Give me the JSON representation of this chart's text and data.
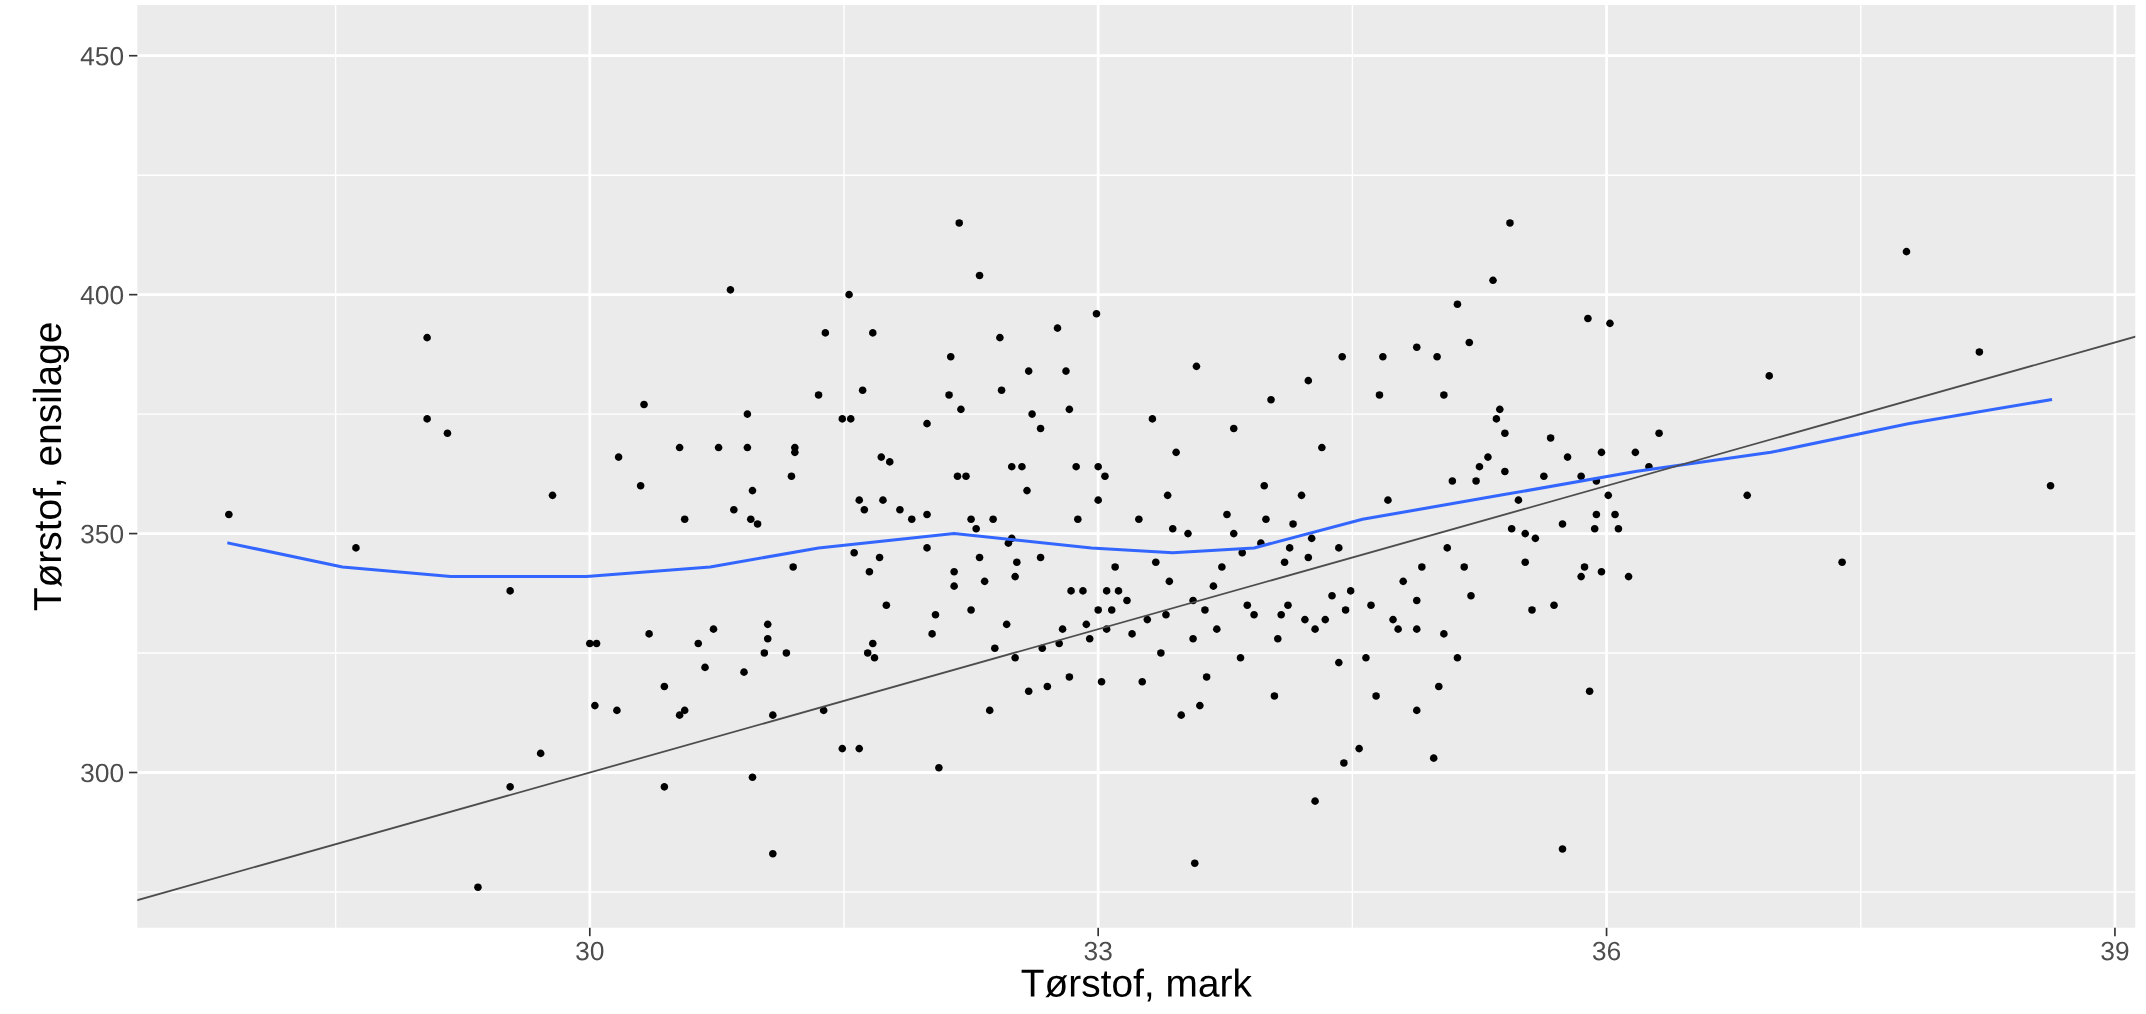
{
  "chart_data": {
    "type": "scatter",
    "xlabel": "Tørstof, mark",
    "ylabel": "Tørstof, ensilage",
    "xlim": [
      27.33,
      39.12
    ],
    "ylim": [
      267.5,
      460.6
    ],
    "xticks": [
      30,
      33,
      36,
      39
    ],
    "yticks": [
      300,
      350,
      400,
      450
    ],
    "grid": true,
    "legend": false,
    "series": [
      {
        "marker": "circle",
        "color": "#000000",
        "x": [
          27.87,
          28.62,
          29.04,
          29.04,
          29.16,
          29.53,
          29.53,
          29.34,
          29.71,
          29.78,
          30.0,
          30.04,
          30.03,
          30.16,
          30.17,
          30.3,
          30.32,
          30.35,
          30.44,
          30.44,
          30.53,
          30.56,
          30.56,
          30.64,
          30.68,
          30.73,
          30.76,
          30.83,
          30.85,
          30.91,
          30.93,
          30.93,
          30.95,
          30.96,
          30.96,
          30.99,
          31.03,
          31.05,
          31.05,
          31.08,
          31.08,
          31.16,
          31.19,
          31.21,
          31.21,
          31.35,
          31.38,
          31.49,
          31.49,
          31.53,
          31.54,
          31.59,
          31.56,
          31.59,
          31.61,
          31.62,
          31.65,
          31.64,
          31.67,
          31.68,
          31.71,
          31.72,
          31.73,
          31.75,
          31.77,
          31.83,
          31.9,
          31.99,
          31.99,
          31.99,
          32.02,
          32.04,
          32.06,
          32.12,
          32.13,
          32.15,
          32.15,
          32.17,
          32.19,
          32.18,
          32.22,
          32.25,
          32.25,
          32.28,
          32.3,
          32.33,
          32.3,
          32.36,
          32.38,
          32.39,
          32.43,
          32.46,
          32.47,
          32.49,
          32.49,
          32.51,
          32.51,
          32.52,
          32.55,
          32.58,
          32.59,
          32.61,
          32.66,
          32.66,
          32.67,
          32.7,
          32.76,
          32.77,
          32.79,
          32.83,
          32.84,
          32.87,
          32.88,
          32.91,
          32.93,
          32.95,
          32.99,
          33.0,
          33.0,
          33.0,
          33.02,
          33.04,
          33.05,
          33.05,
          33.08,
          33.1,
          33.12,
          33.17,
          33.2,
          33.24,
          33.26,
          33.29,
          33.34,
          33.37,
          33.4,
          33.41,
          33.42,
          33.44,
          33.49,
          33.53,
          33.56,
          33.56,
          33.57,
          33.6,
          33.64,
          33.63,
          33.68,
          33.7,
          33.73,
          33.76,
          33.8,
          33.84,
          33.85,
          33.88,
          33.92,
          33.96,
          33.98,
          33.99,
          34.04,
          34.06,
          34.08,
          34.1,
          34.12,
          34.13,
          34.15,
          34.2,
          34.22,
          34.24,
          34.26,
          34.28,
          34.28,
          34.32,
          34.34,
          34.38,
          34.42,
          34.42,
          34.45,
          34.46,
          34.49,
          34.54,
          34.58,
          34.61,
          34.64,
          34.71,
          34.74,
          34.77,
          34.8,
          34.88,
          34.88,
          34.88,
          34.91,
          34.98,
          35.01,
          35.04,
          35.04,
          35.06,
          35.09,
          35.12,
          35.16,
          35.2,
          35.23,
          35.25,
          35.3,
          35.35,
          35.4,
          35.4,
          35.43,
          35.44,
          35.48,
          35.52,
          35.52,
          35.56,
          35.58,
          35.63,
          35.69,
          35.74,
          35.77,
          35.85,
          35.87,
          35.9,
          35.93,
          35.94,
          35.97,
          36.01,
          36.05,
          36.07,
          36.13,
          36.17,
          36.25,
          36.31,
          35.74,
          35.89,
          36.02,
          35.33,
          35.12,
          35.0,
          34.88,
          34.66,
          34.44,
          34.68,
          35.19,
          35.37,
          36.83,
          36.96,
          37.39,
          37.77,
          38.2,
          38.62,
          35.67,
          35.85,
          35.97,
          35.94,
          30.53,
          31.39,
          31.67,
          32.42,
          31.2,
          32.59,
          32.81,
          32.83,
          34.02,
          34.24,
          33.8,
          33.46,
          33.58,
          33.32
        ],
        "values": [
          354,
          347,
          391,
          374,
          371,
          338,
          297,
          276,
          304,
          358,
          327,
          327,
          314,
          313,
          366,
          360,
          377,
          329,
          297,
          318,
          312,
          313,
          353,
          327,
          322,
          330,
          368,
          401,
          355,
          321,
          375,
          368,
          353,
          299,
          359,
          352,
          325,
          328,
          331,
          283,
          312,
          325,
          362,
          367,
          368,
          379,
          313,
          374,
          305,
          400,
          374,
          305,
          346,
          357,
          380,
          355,
          342,
          325,
          327,
          324,
          345,
          366,
          357,
          335,
          365,
          355,
          353,
          373,
          354,
          347,
          329,
          333,
          301,
          379,
          387,
          342,
          339,
          362,
          376,
          415,
          362,
          334,
          353,
          351,
          345,
          340,
          404,
          313,
          353,
          326,
          380,
          331,
          348,
          349,
          364,
          341,
          324,
          344,
          364,
          359,
          317,
          375,
          345,
          372,
          326,
          318,
          393,
          327,
          330,
          320,
          338,
          364,
          353,
          338,
          331,
          328,
          396,
          357,
          334,
          364,
          319,
          362,
          330,
          338,
          334,
          343,
          338,
          336,
          329,
          353,
          319,
          332,
          344,
          325,
          333,
          358,
          340,
          351,
          312,
          350,
          336,
          328,
          281,
          314,
          320,
          334,
          339,
          330,
          343,
          354,
          350,
          324,
          346,
          335,
          333,
          348,
          360,
          353,
          316,
          328,
          333,
          344,
          335,
          347,
          352,
          358,
          332,
          345,
          349,
          294,
          330,
          368,
          332,
          337,
          347,
          323,
          302,
          334,
          338,
          305,
          324,
          335,
          316,
          357,
          332,
          330,
          340,
          313,
          330,
          336,
          343,
          303,
          318,
          379,
          329,
          347,
          361,
          324,
          343,
          337,
          361,
          364,
          366,
          374,
          371,
          363,
          415,
          351,
          357,
          344,
          350,
          334,
          349,
          362,
          335,
          352,
          366,
          341,
          343,
          317,
          351,
          354,
          342,
          358,
          354,
          351,
          341,
          367,
          364,
          371,
          284,
          395,
          394,
          403,
          398,
          387,
          389,
          379,
          387,
          387,
          390,
          376,
          358,
          383,
          344,
          409,
          388,
          360,
          370,
          362,
          367,
          361,
          368,
          392,
          392,
          391,
          343,
          384,
          384,
          376,
          378,
          382,
          372,
          367,
          385,
          374
        ]
      },
      {
        "type": "line",
        "color": "#3366ff",
        "x": [
          27.87,
          28.54,
          29.18,
          29.98,
          30.71,
          31.35,
          32.15,
          32.96,
          33.44,
          33.92,
          34.56,
          35.37,
          36.17,
          36.97,
          37.78,
          38.62
        ],
        "values": [
          348,
          343,
          341,
          341,
          343,
          347,
          350,
          347,
          346,
          347,
          353,
          358,
          363,
          367,
          373,
          378
        ]
      },
      {
        "type": "line",
        "color": "#4d4d4d",
        "x": [
          27.33,
          39.12
        ],
        "values": [
          273.3,
          391.2
        ]
      }
    ]
  }
}
